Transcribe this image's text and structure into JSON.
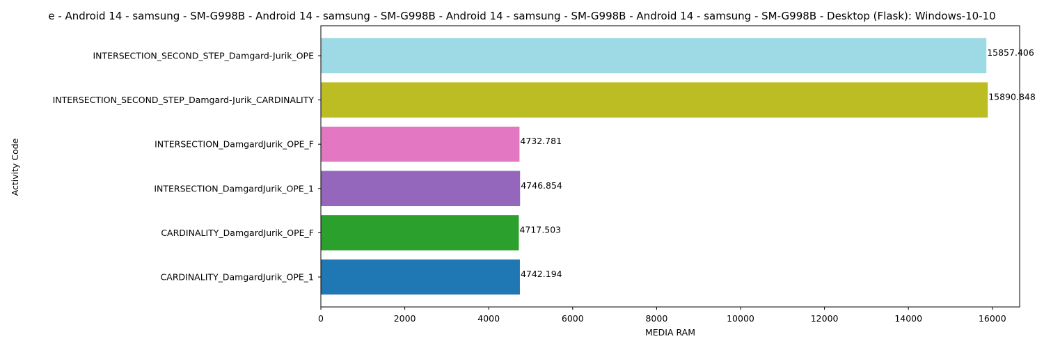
{
  "chart_data": {
    "type": "bar",
    "orientation": "horizontal",
    "title": "e - Android 14 - samsung - SM-G998B - Android 14 - samsung - SM-G998B - Android 14 - samsung - SM-G998B - Android 14 - samsung - SM-G998B - Desktop (Flask): Windows-10-10",
    "xlabel": "MEDIA RAM",
    "ylabel": "Activity Code",
    "xlim": [
      0,
      16650
    ],
    "xticks": [
      0,
      2000,
      4000,
      6000,
      8000,
      10000,
      12000,
      14000,
      16000
    ],
    "grid": false,
    "categories": [
      "CARDINALITY_DamgardJurik_OPE_1",
      "CARDINALITY_DamgardJurik_OPE_F",
      "INTERSECTION_DamgardJurik_OPE_1",
      "INTERSECTION_DamgardJurik_OPE_F",
      "INTERSECTION_SECOND_STEP_Damgard-Jurik_CARDINALITY",
      "INTERSECTION_SECOND_STEP_Damgard-Jurik_OPE"
    ],
    "values": [
      4742.194,
      4717.503,
      4746.854,
      4732.781,
      15890.848,
      15857.406
    ],
    "value_labels": [
      "4742.194",
      "4717.503",
      "4746.854",
      "4732.781",
      "15890.848",
      "15857.406"
    ],
    "colors": [
      "#1f77b4",
      "#2ca02c",
      "#9467bd",
      "#e377c2",
      "#bcbd22",
      "#9edae5"
    ]
  }
}
